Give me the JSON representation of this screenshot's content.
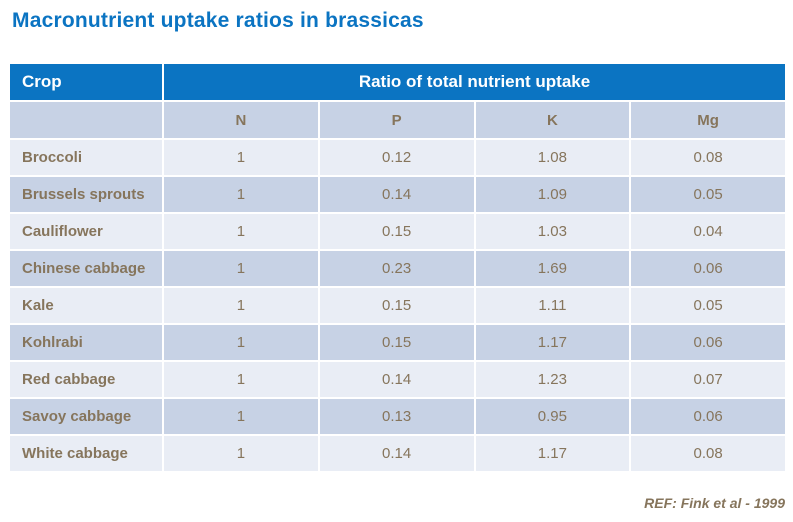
{
  "title": "Macronutrient uptake ratios in brassicas",
  "table": {
    "crop_header": "Crop",
    "group_header": "Ratio of total nutrient uptake",
    "columns": [
      "N",
      "P",
      "K",
      "Mg"
    ],
    "rows": [
      {
        "crop": "Broccoli",
        "values": [
          "1",
          "0.12",
          "1.08",
          "0.08"
        ]
      },
      {
        "crop": "Brussels sprouts",
        "values": [
          "1",
          "0.14",
          "1.09",
          "0.05"
        ]
      },
      {
        "crop": "Cauliflower",
        "values": [
          "1",
          "0.15",
          "1.03",
          "0.04"
        ]
      },
      {
        "crop": "Chinese cabbage",
        "values": [
          "1",
          "0.23",
          "1.69",
          "0.06"
        ]
      },
      {
        "crop": "Kale",
        "values": [
          "1",
          "0.15",
          "1.11",
          "0.05"
        ]
      },
      {
        "crop": "Kohlrabi",
        "values": [
          "1",
          "0.15",
          "1.17",
          "0.06"
        ]
      },
      {
        "crop": "Red cabbage",
        "values": [
          "1",
          "0.14",
          "1.23",
          "0.07"
        ]
      },
      {
        "crop": "Savoy cabbage",
        "values": [
          "1",
          "0.13",
          "0.95",
          "0.06"
        ]
      },
      {
        "crop": "White cabbage",
        "values": [
          "1",
          "0.14",
          "1.17",
          "0.08"
        ]
      }
    ]
  },
  "footer": {
    "ref": "REF: Fink et al - 1999"
  },
  "colors": {
    "accent_blue": "#0b74c2",
    "row_light": "#e9edf5",
    "row_dark": "#c7d2e5",
    "text_brown": "#86755c",
    "header_text": "#ffffff"
  },
  "chart_data": {
    "type": "table",
    "title": "Macronutrient uptake ratios in brassicas",
    "columns": [
      "Crop",
      "N",
      "P",
      "K",
      "Mg"
    ],
    "rows": [
      [
        "Broccoli",
        1,
        0.12,
        1.08,
        0.08
      ],
      [
        "Brussels sprouts",
        1,
        0.14,
        1.09,
        0.05
      ],
      [
        "Cauliflower",
        1,
        0.15,
        1.03,
        0.04
      ],
      [
        "Chinese cabbage",
        1,
        0.23,
        1.69,
        0.06
      ],
      [
        "Kale",
        1,
        0.15,
        1.11,
        0.05
      ],
      [
        "Kohlrabi",
        1,
        0.15,
        1.17,
        0.06
      ],
      [
        "Red cabbage",
        1,
        0.14,
        1.23,
        0.07
      ],
      [
        "Savoy cabbage",
        1,
        0.13,
        0.95,
        0.06
      ],
      [
        "White cabbage",
        1,
        0.14,
        1.17,
        0.08
      ]
    ],
    "annotation": "REF: Fink et al - 1999"
  }
}
